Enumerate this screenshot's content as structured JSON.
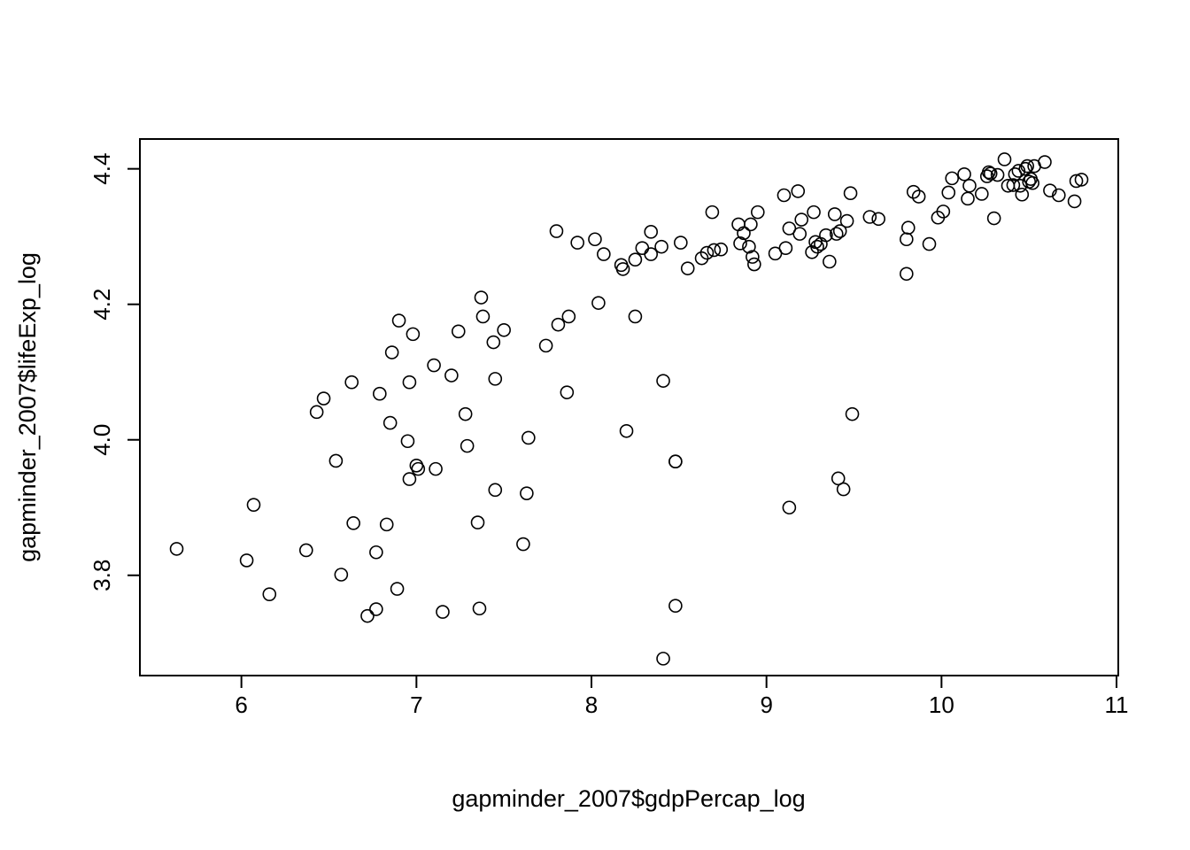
{
  "chart_data": {
    "type": "scatter",
    "title": "",
    "xlabel": "gapminder_2007$gdpPercap_log",
    "ylabel": "gapminder_2007$lifeExp_log",
    "xlim": [
      5.42,
      11.01
    ],
    "ylim": [
      3.652,
      4.444
    ],
    "xticks": [
      6,
      7,
      8,
      9,
      10,
      11
    ],
    "yticks": [
      3.8,
      4.0,
      4.2,
      4.4
    ],
    "xtick_labels": [
      "6",
      "7",
      "8",
      "9",
      "10",
      "11"
    ],
    "ytick_labels": [
      "3.8",
      "4.0",
      "4.2",
      "4.4"
    ],
    "grid": false,
    "marker": "open-circle",
    "x": [
      5.63,
      6.03,
      6.07,
      6.16,
      6.37,
      6.43,
      6.47,
      6.54,
      6.57,
      6.63,
      6.64,
      6.72,
      6.77,
      6.77,
      6.79,
      6.83,
      6.85,
      6.86,
      6.89,
      6.9,
      6.95,
      6.96,
      6.96,
      6.98,
      7.0,
      7.01,
      7.1,
      7.11,
      7.15,
      7.2,
      7.24,
      7.28,
      7.29,
      7.35,
      7.36,
      7.37,
      7.38,
      7.44,
      7.45,
      7.45,
      7.5,
      7.61,
      7.63,
      7.64,
      7.74,
      7.8,
      7.81,
      7.86,
      7.87,
      7.92,
      8.02,
      8.04,
      8.07,
      8.17,
      8.18,
      8.2,
      8.25,
      8.25,
      8.29,
      8.34,
      8.34,
      8.4,
      8.41,
      8.41,
      8.48,
      8.48,
      8.48,
      8.51,
      8.55,
      8.63,
      8.66,
      8.69,
      8.7,
      8.74,
      8.84,
      8.85,
      8.87,
      8.9,
      8.91,
      8.92,
      8.93,
      8.95,
      9.05,
      9.1,
      9.11,
      9.13,
      9.13,
      9.18,
      9.19,
      9.2,
      9.26,
      9.27,
      9.28,
      9.29,
      9.31,
      9.34,
      9.36,
      9.39,
      9.4,
      9.41,
      9.42,
      9.44,
      9.46,
      9.48,
      9.49,
      9.59,
      9.64,
      9.8,
      9.8,
      9.81,
      9.84,
      9.87,
      9.93,
      9.98,
      10.01,
      10.04,
      10.06,
      10.13,
      10.15,
      10.16,
      10.23,
      10.26,
      10.27,
      10.28,
      10.3,
      10.32,
      10.36,
      10.38,
      10.41,
      10.42,
      10.44,
      10.45,
      10.46,
      10.48,
      10.49,
      10.5,
      10.51,
      10.52,
      10.53,
      10.59,
      10.62,
      10.67,
      10.76,
      10.77,
      10.8
    ],
    "y": [
      3.839,
      3.822,
      3.904,
      3.772,
      3.837,
      4.041,
      4.061,
      3.969,
      3.801,
      4.085,
      3.877,
      3.74,
      3.75,
      3.834,
      4.068,
      3.875,
      4.025,
      4.129,
      3.78,
      4.176,
      3.998,
      4.085,
      3.942,
      4.156,
      3.962,
      3.957,
      4.11,
      3.957,
      3.746,
      4.095,
      4.16,
      4.038,
      3.991,
      3.878,
      3.751,
      4.21,
      4.182,
      4.144,
      3.926,
      4.09,
      4.162,
      3.846,
      3.921,
      4.003,
      4.139,
      4.308,
      4.17,
      4.07,
      4.182,
      4.291,
      4.296,
      4.202,
      4.274,
      4.258,
      4.252,
      4.013,
      4.266,
      4.182,
      4.283,
      4.307,
      4.274,
      4.285,
      4.087,
      3.677,
      3.968,
      3.755,
      3.968,
      4.291,
      4.253,
      4.268,
      4.276,
      4.336,
      4.28,
      4.281,
      4.318,
      4.29,
      4.305,
      4.285,
      4.318,
      4.27,
      4.259,
      4.336,
      4.275,
      4.361,
      4.283,
      4.312,
      3.9,
      4.367,
      4.304,
      4.325,
      4.277,
      4.336,
      4.292,
      4.285,
      4.289,
      4.302,
      4.263,
      4.333,
      4.304,
      3.943,
      4.308,
      3.927,
      4.323,
      4.364,
      4.038,
      4.329,
      4.326,
      4.296,
      4.245,
      4.313,
      4.366,
      4.359,
      4.289,
      4.328,
      4.337,
      4.365,
      4.386,
      4.392,
      4.356,
      4.375,
      4.363,
      4.389,
      4.395,
      4.393,
      4.327,
      4.391,
      4.414,
      4.375,
      4.376,
      4.392,
      4.397,
      4.375,
      4.362,
      4.4,
      4.404,
      4.381,
      4.385,
      4.379,
      4.404,
      4.41,
      4.368,
      4.361,
      4.352,
      4.382,
      4.384
    ]
  }
}
